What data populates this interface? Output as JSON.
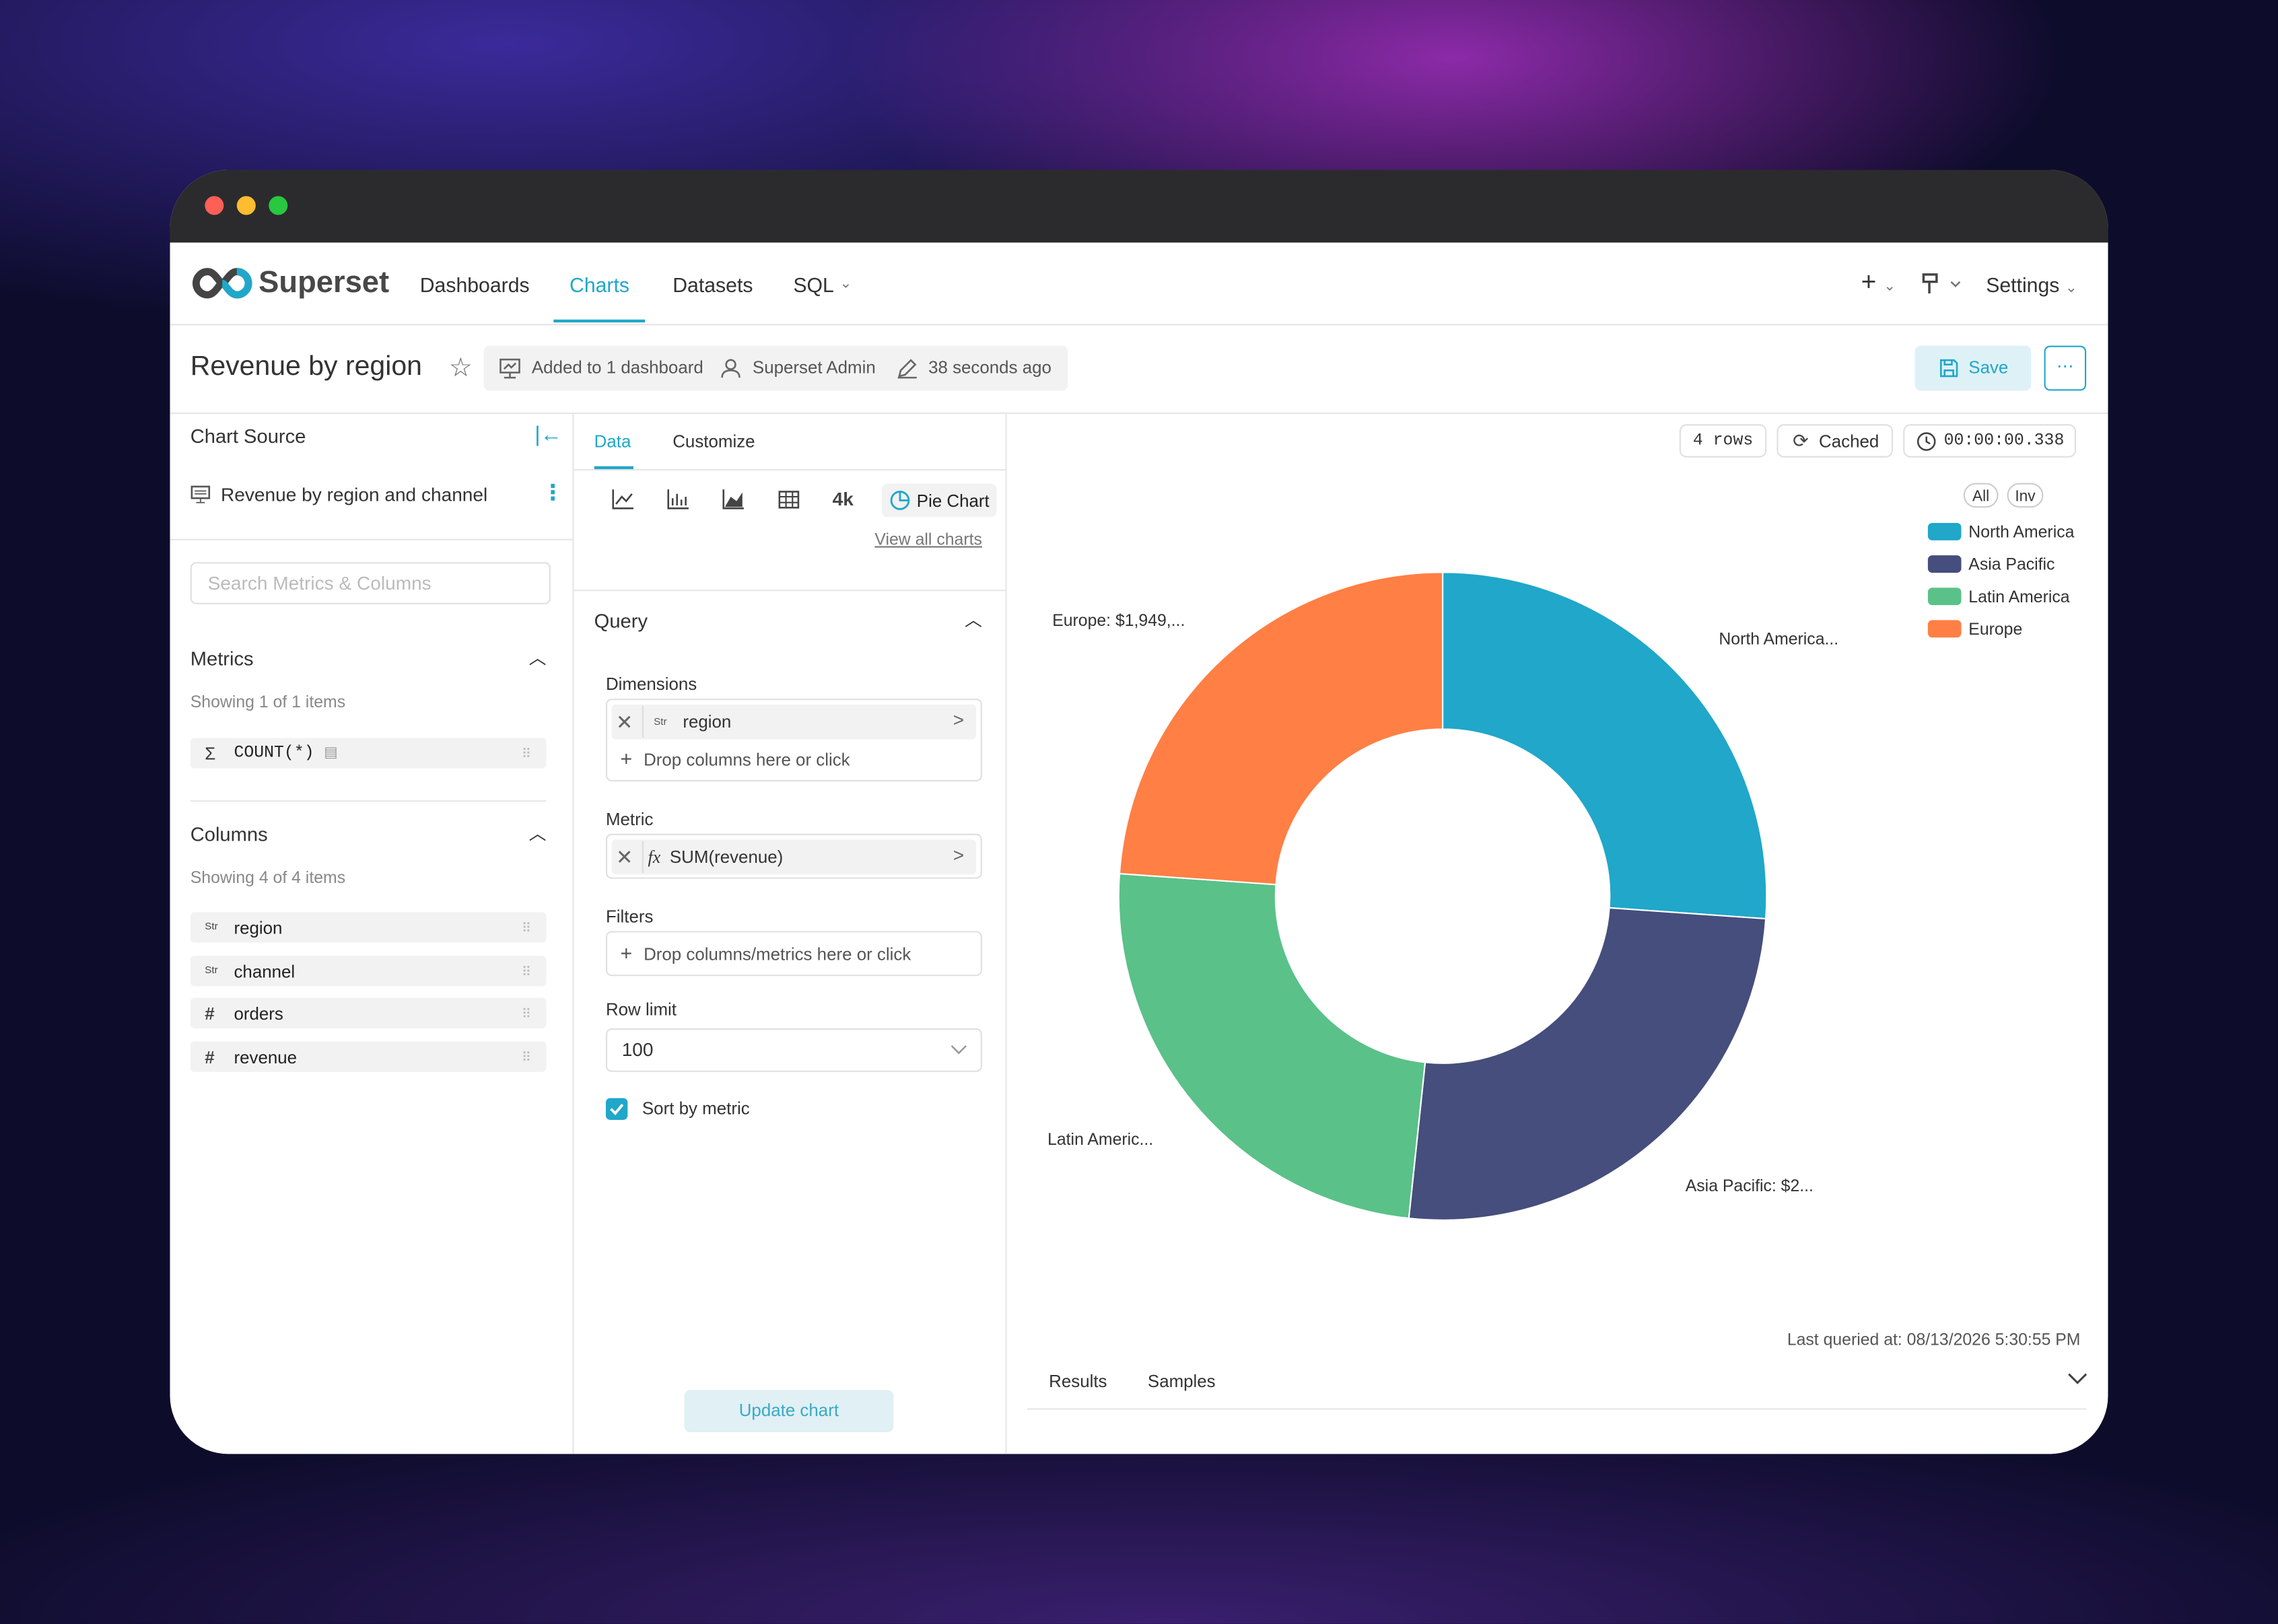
{
  "navbar": {
    "brand": "Superset",
    "items": [
      "Dashboards",
      "Charts",
      "Datasets",
      "SQL"
    ],
    "active": "Charts",
    "settings": "Settings"
  },
  "header": {
    "title": "Revenue by region",
    "dashboards": "Added to 1 dashboard",
    "owner": "Superset Admin",
    "modified": "38 seconds ago",
    "save": "Save"
  },
  "source": {
    "heading": "Chart Source",
    "dataset": "Revenue by region and channel",
    "search_placeholder": "Search Metrics & Columns",
    "metrics_heading": "Metrics",
    "metrics_count": "Showing 1 of 1 items",
    "metrics": [
      "COUNT(*)"
    ],
    "columns_heading": "Columns",
    "columns_count": "Showing 4 of 4 items",
    "columns": [
      {
        "type": "Str",
        "name": "region"
      },
      {
        "type": "Str",
        "name": "channel"
      },
      {
        "type": "#",
        "name": "orders"
      },
      {
        "type": "#",
        "name": "revenue"
      }
    ]
  },
  "controls": {
    "tabs": [
      "Data",
      "Customize"
    ],
    "quick": "4k",
    "current_chart": "Pie Chart",
    "view_all": "View all charts",
    "section": "Query",
    "dimensions_label": "Dimensions",
    "dimension": {
      "type": "Str",
      "name": "region"
    },
    "drop_columns": "Drop columns here or click",
    "metric_label": "Metric",
    "metric_icon": "fx",
    "metric": "SUM(revenue)",
    "filters_label": "Filters",
    "filters_drop": "Drop columns/metrics here or click",
    "row_limit_label": "Row limit",
    "row_limit": 100,
    "sort_label": "Sort by metric",
    "sort_checked": true,
    "update": "Update chart"
  },
  "panel": {
    "rows": "4 rows",
    "status": "Cached",
    "duration": "00:00:00.338",
    "legend_all": "All",
    "legend_inv": "Inv",
    "last_queried": "Last queried at: 08/13/2026 5:30:55 PM",
    "tabs": [
      "Results",
      "Samples"
    ]
  },
  "chart_data": {
    "type": "pie",
    "donut": true,
    "categories": [
      "North America",
      "Asia Pacific",
      "Latin America",
      "Europe"
    ],
    "values": [
      2130000,
      2085000,
      1994000,
      1949000
    ],
    "value_labels": [
      "North America...",
      "Asia Pacific: $2...",
      "Latin Americ...",
      "Europe: $1,949,..."
    ],
    "colors": [
      "#20a7c9",
      "#454e7c",
      "#5ac189",
      "#ff7f44"
    ],
    "legend": "top-right"
  }
}
